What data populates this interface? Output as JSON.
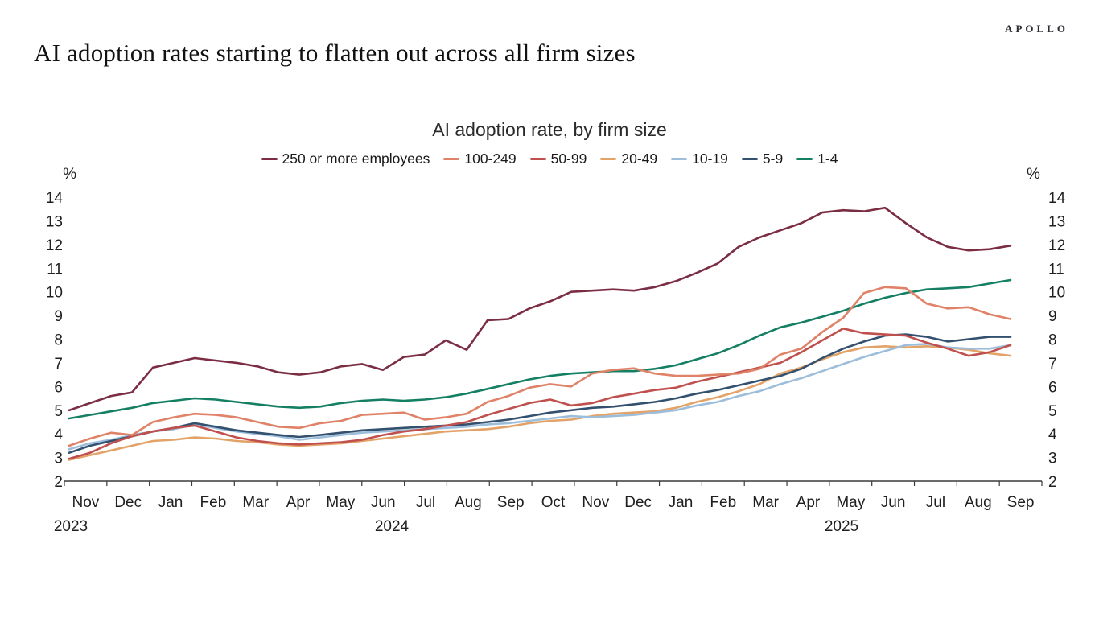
{
  "branding": {
    "logo": "APOLLO"
  },
  "header": {
    "title": "AI adoption rates starting to flatten out across all firm sizes"
  },
  "chart_data": {
    "type": "line",
    "title": "AI adoption rate, by firm size",
    "unit_label": "%",
    "grid": false,
    "legend_position": "top",
    "ylim": [
      2,
      14
    ],
    "y_ticks": [
      14,
      13,
      12,
      11,
      10,
      9,
      8,
      7,
      6,
      5,
      4,
      3,
      2
    ],
    "points_per_month": 2,
    "x_months": [
      "Nov",
      "Dec",
      "Jan",
      "Feb",
      "Mar",
      "Apr",
      "May",
      "Jun",
      "Jul",
      "Aug",
      "Sep",
      "Oct",
      "Nov",
      "Dec",
      "Jan",
      "Feb",
      "Mar",
      "Apr",
      "May",
      "Jun",
      "Jul",
      "Aug",
      "Sep"
    ],
    "x_years": [
      "2023",
      "2024",
      "2025"
    ],
    "series": [
      {
        "name": "250 or more employees",
        "color": "#7b2d43",
        "values": [
          5.0,
          5.3,
          5.6,
          5.75,
          6.8,
          7.0,
          7.2,
          7.1,
          7.0,
          6.85,
          6.6,
          6.5,
          6.6,
          6.85,
          6.95,
          6.7,
          7.25,
          7.35,
          7.95,
          7.55,
          8.8,
          8.85,
          9.3,
          9.6,
          10.0,
          10.05,
          10.1,
          10.05,
          10.2,
          10.45,
          10.8,
          11.2,
          11.9,
          12.3,
          12.6,
          12.9,
          13.35,
          13.45,
          13.4,
          13.55,
          12.9,
          12.3,
          11.9,
          11.75,
          11.8,
          11.95
        ]
      },
      {
        "name": "100-249",
        "color": "#e08268",
        "values": [
          3.5,
          3.8,
          4.05,
          3.95,
          4.5,
          4.7,
          4.85,
          4.8,
          4.7,
          4.5,
          4.3,
          4.25,
          4.45,
          4.55,
          4.8,
          4.85,
          4.9,
          4.6,
          4.7,
          4.85,
          5.35,
          5.6,
          5.95,
          6.1,
          6.0,
          6.55,
          6.7,
          6.77,
          6.55,
          6.45,
          6.45,
          6.5,
          6.55,
          6.75,
          7.35,
          7.6,
          8.3,
          8.9,
          9.95,
          10.2,
          10.15,
          9.5,
          9.3,
          9.35,
          9.05,
          8.85
        ]
      },
      {
        "name": "50-99",
        "color": "#c0504d",
        "values": [
          2.95,
          3.2,
          3.6,
          3.9,
          4.1,
          4.25,
          4.35,
          4.1,
          3.85,
          3.7,
          3.6,
          3.55,
          3.6,
          3.65,
          3.75,
          3.95,
          4.1,
          4.2,
          4.35,
          4.5,
          4.8,
          5.05,
          5.3,
          5.45,
          5.2,
          5.3,
          5.55,
          5.7,
          5.85,
          5.95,
          6.2,
          6.4,
          6.6,
          6.8,
          7.0,
          7.45,
          7.95,
          8.45,
          8.25,
          8.2,
          8.15,
          7.85,
          7.6,
          7.3,
          7.45,
          7.75
        ]
      },
      {
        "name": "20-49",
        "color": "#e3a368",
        "values": [
          2.9,
          3.1,
          3.3,
          3.5,
          3.7,
          3.75,
          3.85,
          3.8,
          3.7,
          3.65,
          3.55,
          3.5,
          3.55,
          3.6,
          3.7,
          3.8,
          3.9,
          4.0,
          4.1,
          4.15,
          4.2,
          4.3,
          4.45,
          4.55,
          4.6,
          4.75,
          4.85,
          4.9,
          4.95,
          5.1,
          5.35,
          5.55,
          5.8,
          6.1,
          6.55,
          6.8,
          7.15,
          7.45,
          7.65,
          7.7,
          7.65,
          7.7,
          7.65,
          7.55,
          7.4,
          7.3
        ]
      },
      {
        "name": "10-19",
        "color": "#9dbedb",
        "values": [
          3.35,
          3.6,
          3.75,
          3.95,
          4.1,
          4.2,
          4.4,
          4.25,
          4.1,
          4.0,
          3.9,
          3.75,
          3.85,
          3.95,
          4.05,
          4.1,
          4.15,
          4.2,
          4.25,
          4.3,
          4.4,
          4.45,
          4.55,
          4.65,
          4.75,
          4.7,
          4.75,
          4.8,
          4.9,
          5.0,
          5.2,
          5.35,
          5.6,
          5.8,
          6.1,
          6.35,
          6.65,
          6.95,
          7.25,
          7.5,
          7.75,
          7.8,
          7.65,
          7.6,
          7.6,
          7.75
        ]
      },
      {
        "name": "5-9",
        "color": "#33506e",
        "values": [
          3.2,
          3.5,
          3.7,
          3.9,
          4.1,
          4.25,
          4.45,
          4.3,
          4.15,
          4.05,
          3.95,
          3.87,
          3.95,
          4.05,
          4.15,
          4.2,
          4.25,
          4.3,
          4.35,
          4.4,
          4.5,
          4.6,
          4.75,
          4.9,
          5.0,
          5.1,
          5.15,
          5.25,
          5.35,
          5.5,
          5.7,
          5.85,
          6.05,
          6.25,
          6.45,
          6.75,
          7.2,
          7.6,
          7.9,
          8.15,
          8.2,
          8.1,
          7.9,
          8.0,
          8.1,
          8.1
        ]
      },
      {
        "name": "1-4",
        "color": "#157f63",
        "values": [
          4.65,
          4.8,
          4.95,
          5.1,
          5.3,
          5.4,
          5.5,
          5.45,
          5.35,
          5.25,
          5.15,
          5.1,
          5.15,
          5.3,
          5.4,
          5.45,
          5.4,
          5.45,
          5.55,
          5.7,
          5.9,
          6.1,
          6.3,
          6.45,
          6.55,
          6.6,
          6.65,
          6.65,
          6.75,
          6.9,
          7.15,
          7.4,
          7.75,
          8.15,
          8.5,
          8.7,
          8.95,
          9.2,
          9.5,
          9.75,
          9.95,
          10.1,
          10.15,
          10.2,
          10.35,
          10.5
        ]
      }
    ]
  }
}
